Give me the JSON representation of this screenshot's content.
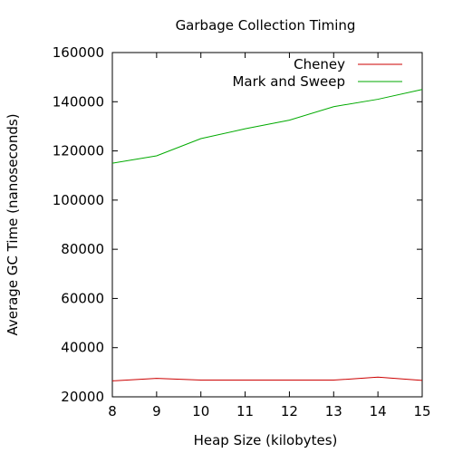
{
  "chart_data": {
    "type": "line",
    "title": "Garbage Collection Timing",
    "xlabel": "Heap Size (kilobytes)",
    "ylabel": "Average GC Time (nanoseconds)",
    "xlim": [
      8,
      15
    ],
    "ylim": [
      20000,
      160000
    ],
    "x_ticks": [
      8,
      9,
      10,
      11,
      12,
      13,
      14,
      15
    ],
    "y_ticks": [
      20000,
      40000,
      60000,
      80000,
      100000,
      120000,
      140000,
      160000
    ],
    "grid": false,
    "legend_position": "top-right",
    "x": [
      8,
      9,
      10,
      11,
      12,
      13,
      14,
      15
    ],
    "series": [
      {
        "name": "Cheney",
        "color": "#cc0000",
        "values": [
          26500,
          27500,
          26800,
          26800,
          26800,
          26800,
          28000,
          26700
        ]
      },
      {
        "name": "Mark and Sweep",
        "color": "#00aa00",
        "values": [
          115000,
          118000,
          125000,
          129000,
          132500,
          138000,
          141000,
          145000
        ]
      }
    ]
  }
}
